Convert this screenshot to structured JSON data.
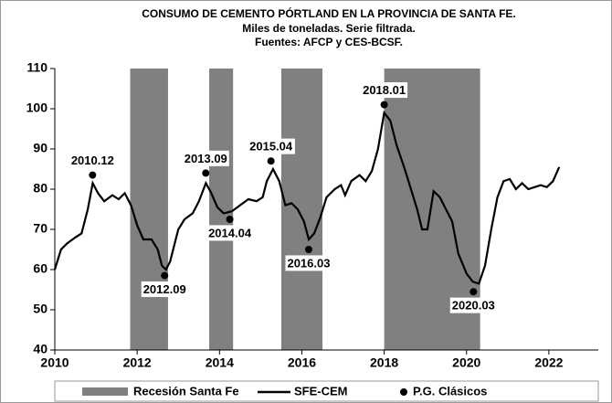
{
  "chart_data": {
    "type": "line",
    "title": "CONSUMO DE CEMENTO PÓRTLAND EN LA PROVINCIA DE SANTA FE.",
    "subtitle": "Miles de toneladas. Serie filtrada.",
    "source": "Fuentes: AFCP y CES-BCSF.",
    "xlim": [
      2010,
      2023.2
    ],
    "xticks": [
      2010,
      2012,
      2014,
      2016,
      2018,
      2020,
      2022
    ],
    "ylim": [
      40,
      110
    ],
    "yticks": [
      40,
      50,
      60,
      70,
      80,
      90,
      100,
      110
    ],
    "recessions": {
      "name": "Recesión Santa Fe",
      "color": "#808080",
      "start": [
        2011.83,
        2013.75,
        2015.5,
        2018.0
      ],
      "end": [
        2012.75,
        2014.33,
        2016.5,
        2020.33
      ]
    },
    "series": [
      {
        "name": "SFE-CEM",
        "color": "#000000",
        "x": [
          2010.0,
          2010.15,
          2010.3,
          2010.5,
          2010.65,
          2010.8,
          2010.92,
          2011.05,
          2011.2,
          2011.4,
          2011.55,
          2011.7,
          2011.85,
          2012.0,
          2012.15,
          2012.35,
          2012.5,
          2012.6,
          2012.7,
          2012.8,
          2013.0,
          2013.15,
          2013.35,
          2013.5,
          2013.67,
          2013.8,
          2013.95,
          2014.1,
          2014.3,
          2014.5,
          2014.7,
          2014.9,
          2015.05,
          2015.15,
          2015.3,
          2015.45,
          2015.6,
          2015.75,
          2015.9,
          2016.05,
          2016.17,
          2016.3,
          2016.45,
          2016.6,
          2016.8,
          2016.95,
          2017.05,
          2017.2,
          2017.4,
          2017.55,
          2017.7,
          2017.85,
          2018.0,
          2018.15,
          2018.3,
          2018.5,
          2018.65,
          2018.8,
          2018.92,
          2019.05,
          2019.2,
          2019.35,
          2019.5,
          2019.65,
          2019.8,
          2020.0,
          2020.15,
          2020.3,
          2020.45,
          2020.6,
          2020.75,
          2020.9,
          2021.05,
          2021.2,
          2021.35,
          2021.5,
          2021.65,
          2021.8,
          2021.95,
          2022.1,
          2022.25
        ],
        "values": [
          60,
          65,
          66.5,
          68,
          69,
          75,
          81.5,
          79,
          77,
          78.5,
          77.5,
          79,
          76,
          71,
          67.5,
          67.5,
          65,
          61,
          60,
          62,
          70,
          72.5,
          74,
          77,
          81.5,
          79,
          75.5,
          74,
          74.5,
          76,
          77.5,
          77,
          78,
          82,
          85,
          82,
          76,
          76.5,
          75,
          72,
          67.5,
          69,
          73,
          78,
          80,
          81,
          78.5,
          82,
          83.5,
          82,
          84.5,
          90,
          99,
          97,
          91,
          85,
          80,
          75,
          70,
          70,
          79.5,
          78,
          75,
          72,
          64,
          59,
          57,
          56.5,
          61,
          70,
          78,
          82,
          82.5,
          80,
          81.5,
          80,
          80.5,
          81,
          80.5,
          82,
          85.5
        ]
      }
    ],
    "turning_points": {
      "name": "P.G. Clásicos",
      "color": "#000000",
      "x": [
        2010.917,
        2012.667,
        2013.667,
        2014.25,
        2015.25,
        2016.167,
        2018.0,
        2020.167
      ],
      "values": [
        83.5,
        58.5,
        84,
        72.5,
        87,
        65,
        101,
        54.5
      ],
      "labels": [
        "2010.12",
        "2012.09",
        "2013.09",
        "2014.04",
        "2015.04",
        "2016.03",
        "2018.01",
        "2020.03"
      ]
    }
  }
}
